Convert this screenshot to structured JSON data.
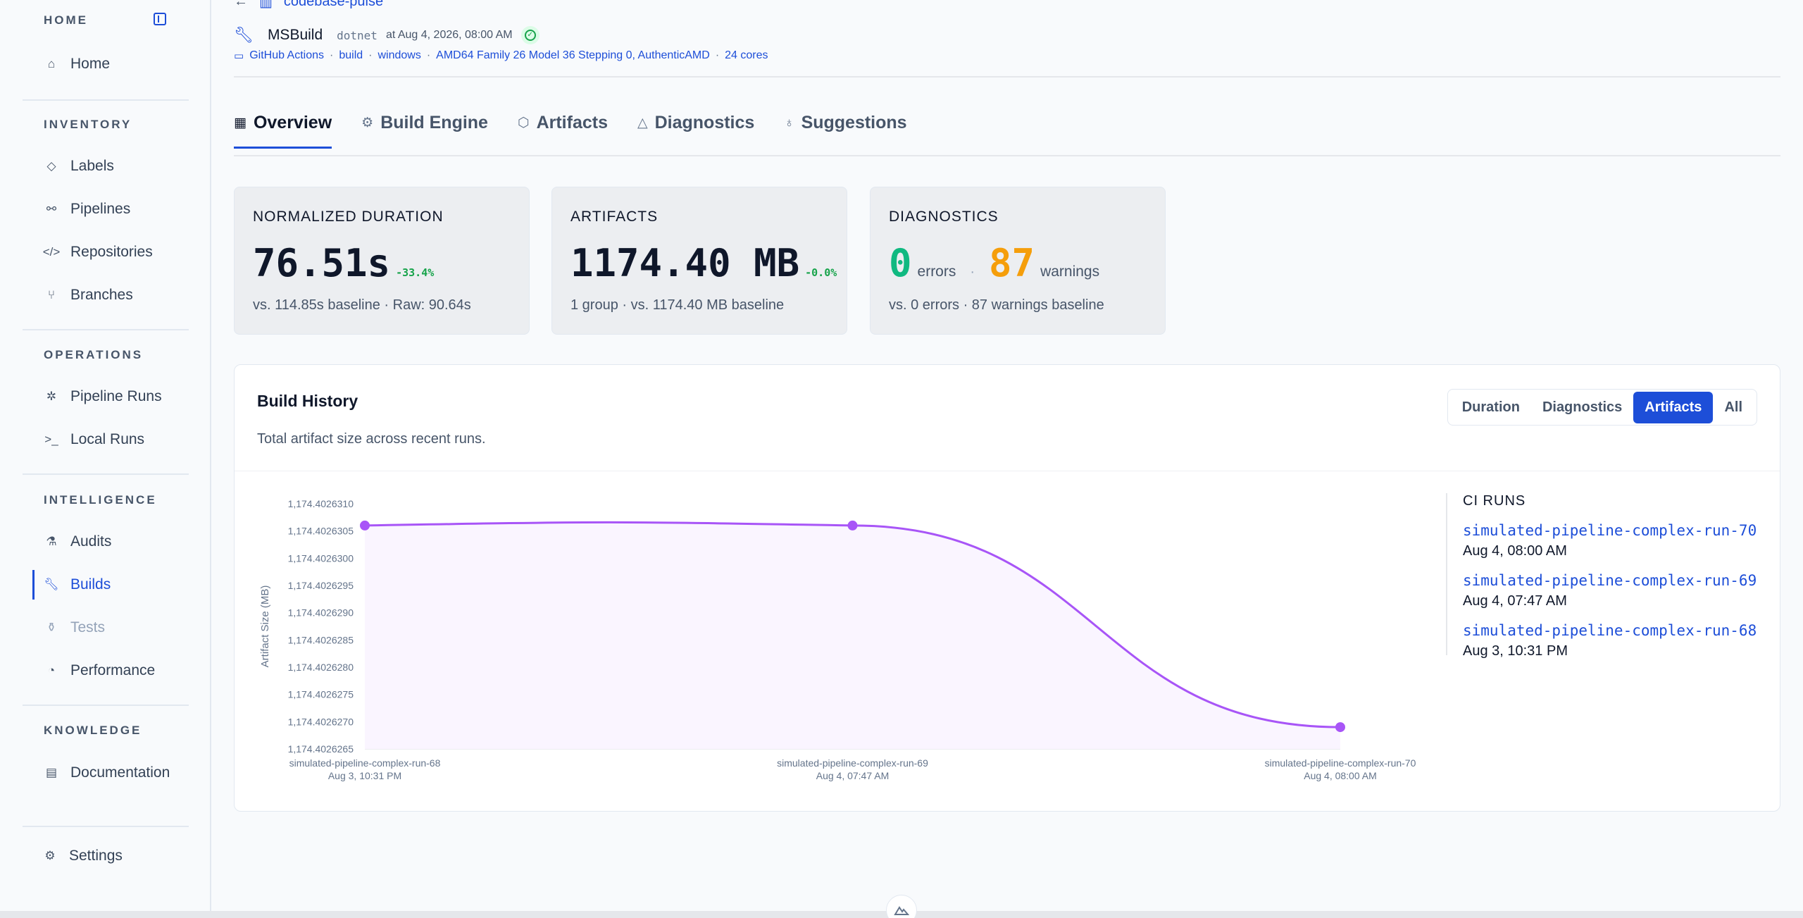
{
  "sidebar": {
    "home_title": "HOME",
    "home_item": "Home",
    "sections": [
      {
        "title": "INVENTORY",
        "items": [
          "Labels",
          "Pipelines",
          "Repositories",
          "Branches"
        ]
      },
      {
        "title": "OPERATIONS",
        "items": [
          "Pipeline Runs",
          "Local Runs"
        ]
      },
      {
        "title": "INTELLIGENCE",
        "items": [
          "Audits",
          "Builds",
          "Tests",
          "Performance"
        ]
      },
      {
        "title": "KNOWLEDGE",
        "items": [
          "Documentation"
        ]
      }
    ],
    "settings": "Settings"
  },
  "header": {
    "back_link": "codebase-pulse",
    "build_name": "MSBuild",
    "tool": "dotnet",
    "timestamp": "at Aug 4, 2026, 08:00 AM",
    "meta": [
      "GitHub Actions",
      "build",
      "windows",
      "AMD64 Family 26 Model 36 Stepping 0, AuthenticAMD",
      "24 cores"
    ],
    "meta_sep": "·"
  },
  "tabs": [
    "Overview",
    "Build Engine",
    "Artifacts",
    "Diagnostics",
    "Suggestions"
  ],
  "cards": {
    "duration": {
      "label": "NORMALIZED DURATION",
      "value": "76.51s",
      "delta": "-33.4%",
      "sub": "vs. 114.85s baseline · Raw: 90.64s"
    },
    "artifacts": {
      "label": "ARTIFACTS",
      "value": "1174.40 MB",
      "delta": "-0.0%",
      "sub": "1 group · vs. 1174.40 MB baseline"
    },
    "diagnostics": {
      "label": "DIAGNOSTICS",
      "errors": "0",
      "errors_label": "errors",
      "sep": "·",
      "warnings": "87",
      "warnings_label": "warnings",
      "sub": "vs. 0 errors · 87 warnings baseline"
    }
  },
  "history": {
    "title": "Build History",
    "subtitle": "Total artifact size across recent runs.",
    "toggle": [
      "Duration",
      "Diagnostics",
      "Artifacts",
      "All"
    ],
    "selected": "Artifacts",
    "runs_title": "CI RUNS",
    "runs": [
      {
        "name": "simulated-pipeline-complex-run-70",
        "date": "Aug 4, 08:00 AM"
      },
      {
        "name": "simulated-pipeline-complex-run-69",
        "date": "Aug 4, 07:47 AM"
      },
      {
        "name": "simulated-pipeline-complex-run-68",
        "date": "Aug 3, 10:31 PM"
      }
    ]
  },
  "chart_data": {
    "type": "area",
    "ylabel": "Artifact Size (MB)",
    "categories": [
      "simulated-pipeline-complex-run-68",
      "simulated-pipeline-complex-run-69",
      "simulated-pipeline-complex-run-70"
    ],
    "category_dates": [
      "Aug 3, 10:31 PM",
      "Aug 4, 07:47 AM",
      "Aug 4, 08:00 AM"
    ],
    "values": [
      1174.4026306,
      1174.4026306,
      1174.4026269
    ],
    "ylim": [
      1174.4026265,
      1174.402631
    ],
    "yticks": [
      "1,174.4026310",
      "1,174.4026305",
      "1,174.4026300",
      "1,174.4026295",
      "1,174.4026290",
      "1,174.4026285",
      "1,174.4026280",
      "1,174.4026275",
      "1,174.4026270",
      "1,174.4026265"
    ],
    "line_color": "#a855f7",
    "fill_color": "#faf5ff"
  }
}
